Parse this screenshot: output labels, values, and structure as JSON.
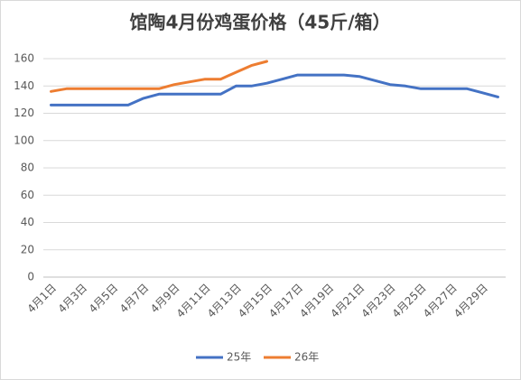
{
  "chart_data": {
    "type": "line",
    "title": "馆陶4月份鸡蛋价格（45斤/箱）",
    "categories": [
      "4月1日",
      null,
      "4月3日",
      null,
      "4月5日",
      null,
      "4月7日",
      null,
      "4月9日",
      null,
      "4月11日",
      null,
      "4月13日",
      null,
      "4月15日",
      null,
      "4月17日",
      null,
      "4月19日",
      null,
      "4月21日",
      null,
      "4月23日",
      null,
      "4月25日",
      null,
      "4月27日",
      null,
      "4月29日",
      null
    ],
    "series": [
      {
        "name": "25年",
        "color": "#4472c4",
        "values": [
          126,
          126,
          126,
          126,
          126,
          126,
          131,
          134,
          134,
          134,
          134,
          134,
          140,
          140,
          142,
          145,
          148,
          148,
          148,
          148,
          147,
          144,
          141,
          140,
          138,
          138,
          138,
          138,
          135,
          132
        ]
      },
      {
        "name": "26年",
        "color": "#ed7d31",
        "values": [
          136,
          138,
          138,
          138,
          138,
          138,
          138,
          138,
          141,
          143,
          145,
          145,
          150,
          155,
          158,
          null,
          null,
          null,
          null,
          null,
          null,
          null,
          null,
          null,
          null,
          null,
          null,
          null,
          null,
          null
        ]
      }
    ],
    "ylim": [
      0,
      160
    ],
    "yticks": [
      0,
      20,
      40,
      60,
      80,
      100,
      120,
      140,
      160
    ],
    "grid": true,
    "legend": "bottom"
  }
}
